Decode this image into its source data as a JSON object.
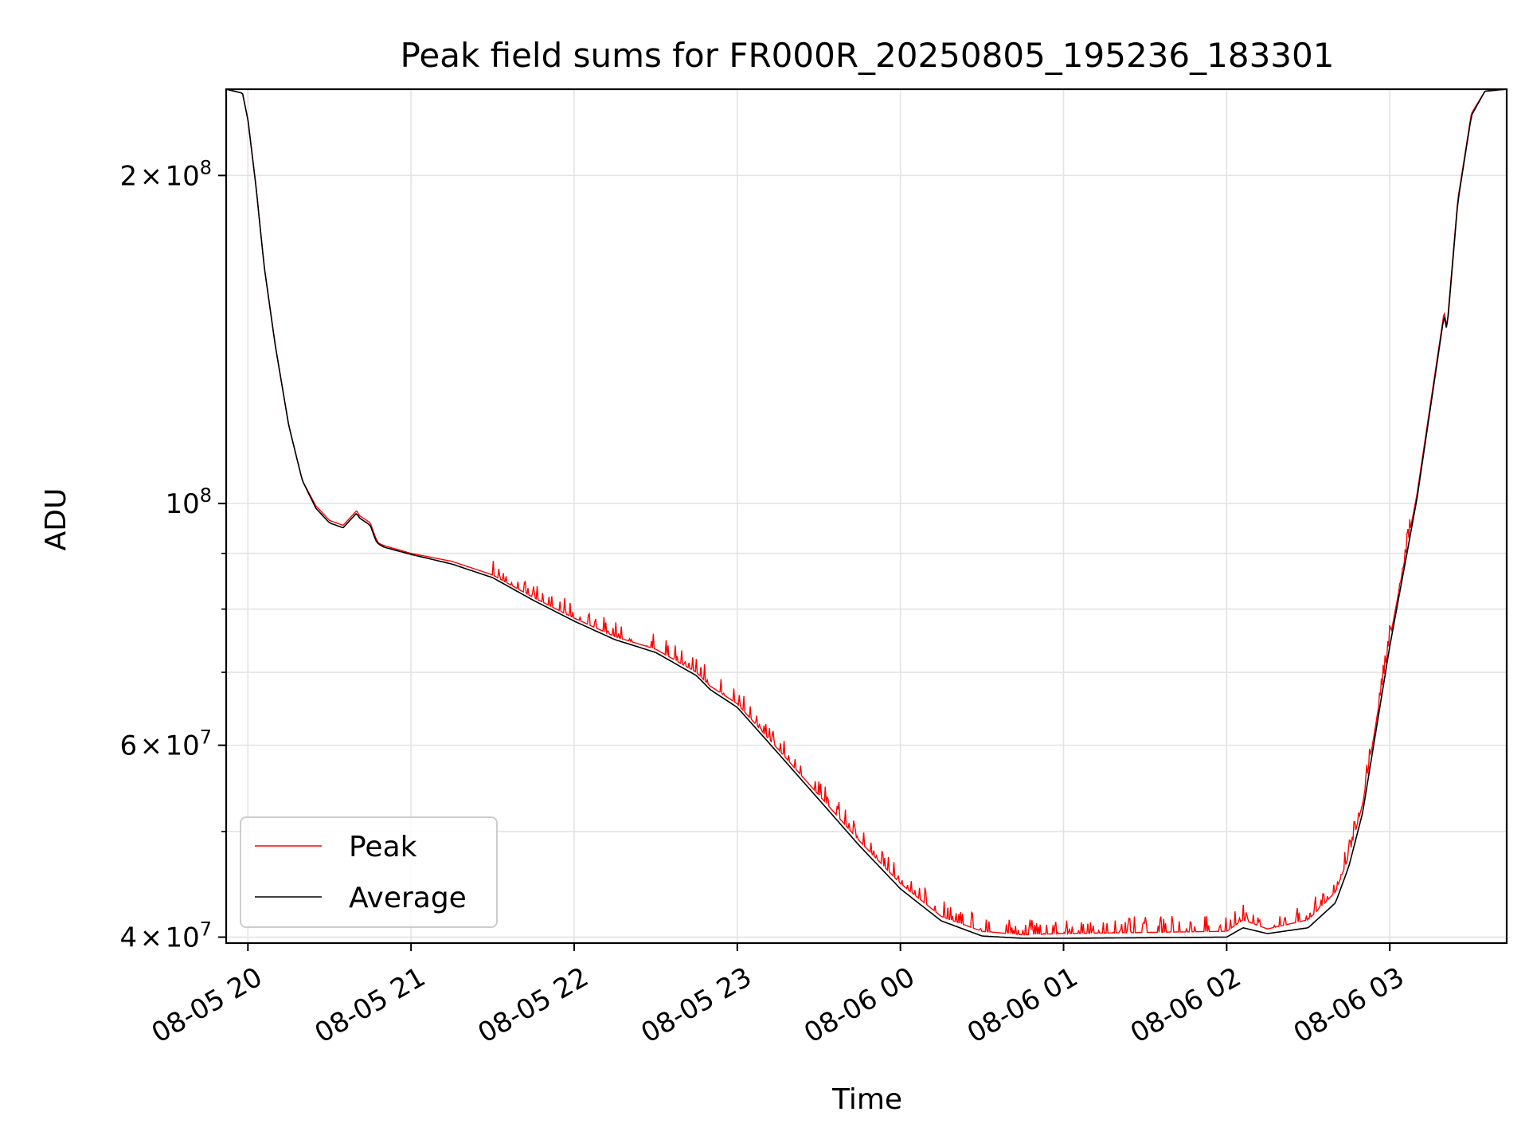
{
  "chart_data": {
    "type": "line",
    "title": "Peak field sums for FR000R_20250805_195236_183301",
    "xlabel": "Time",
    "ylabel": "ADU",
    "yscale": "log",
    "ylim": [
      39500000,
      240000000
    ],
    "xlim": [
      "2025-08-05 19:52",
      "2025-08-06 03:43"
    ],
    "grid": true,
    "legend_position": "lower-left",
    "x_ticks": [
      {
        "t": "2025-08-05 20:00",
        "label": "08-05 20"
      },
      {
        "t": "2025-08-05 21:00",
        "label": "08-05 21"
      },
      {
        "t": "2025-08-05 22:00",
        "label": "08-05 22"
      },
      {
        "t": "2025-08-05 23:00",
        "label": "08-05 23"
      },
      {
        "t": "2025-08-06 00:00",
        "label": "08-06 00"
      },
      {
        "t": "2025-08-06 01:00",
        "label": "08-06 01"
      },
      {
        "t": "2025-08-06 02:00",
        "label": "08-06 02"
      },
      {
        "t": "2025-08-06 03:00",
        "label": "08-06 03"
      }
    ],
    "y_ticks": [
      {
        "v": 40000000,
        "base": "4",
        "exp": "7"
      },
      {
        "v": 60000000,
        "base": "6",
        "exp": "7"
      },
      {
        "v": 100000000,
        "base": "",
        "exp": "8"
      },
      {
        "v": 200000000,
        "base": "2",
        "exp": "8"
      }
    ],
    "y_minor_ticks": [
      50000000,
      70000000,
      80000000,
      90000000,
      300000000
    ],
    "series": [
      {
        "name": "Peak",
        "color": "#ff0000",
        "noisy": true,
        "x": [
          "2025-08-05 19:52",
          "2025-08-05 19:58",
          "2025-08-05 20:00",
          "2025-08-05 20:03",
          "2025-08-05 20:06",
          "2025-08-05 20:10",
          "2025-08-05 20:15",
          "2025-08-05 20:20",
          "2025-08-05 20:25",
          "2025-08-05 20:30",
          "2025-08-05 20:35",
          "2025-08-05 20:40",
          "2025-08-05 20:41",
          "2025-08-05 20:45",
          "2025-08-05 20:47",
          "2025-08-05 20:48",
          "2025-08-05 20:50",
          "2025-08-05 21:00",
          "2025-08-05 21:15",
          "2025-08-05 21:30",
          "2025-08-05 21:45",
          "2025-08-05 22:00",
          "2025-08-05 22:15",
          "2025-08-05 22:30",
          "2025-08-05 22:45",
          "2025-08-05 22:50",
          "2025-08-05 23:00",
          "2025-08-05 23:15",
          "2025-08-05 23:30",
          "2025-08-05 23:45",
          "2025-08-06 00:00",
          "2025-08-06 00:15",
          "2025-08-06 00:30",
          "2025-08-06 00:45",
          "2025-08-06 01:00",
          "2025-08-06 01:30",
          "2025-08-06 02:00",
          "2025-08-06 02:06",
          "2025-08-06 02:15",
          "2025-08-06 02:30",
          "2025-08-06 02:40",
          "2025-08-06 02:45",
          "2025-08-06 02:50",
          "2025-08-06 03:00",
          "2025-08-06 03:10",
          "2025-08-06 03:20",
          "2025-08-06 03:21",
          "2025-08-06 03:25",
          "2025-08-06 03:30",
          "2025-08-06 03:35",
          "2025-08-06 03:43"
        ],
        "y": [
          240000000,
          238000000,
          225000000,
          195000000,
          165000000,
          140000000,
          118000000,
          105000000,
          99500000,
          96500000,
          95500000,
          98500000,
          97500000,
          96000000,
          93000000,
          92000000,
          91500000,
          90000000,
          88500000,
          86000000,
          82000000,
          78500000,
          75500000,
          73500000,
          70000000,
          68000000,
          65500000,
          59500000,
          54000000,
          49000000,
          44800000,
          41800000,
          40500000,
          40200000,
          40300000,
          40400000,
          40500000,
          41500000,
          40700000,
          41500000,
          44000000,
          47500000,
          53000000,
          75000000,
          102000000,
          150000000,
          145000000,
          190000000,
          228000000,
          239000000,
          240000000
        ]
      },
      {
        "name": "Average",
        "color": "#000000",
        "noisy": false,
        "x": [
          "2025-08-05 19:52",
          "2025-08-05 19:58",
          "2025-08-05 20:00",
          "2025-08-05 20:03",
          "2025-08-05 20:06",
          "2025-08-05 20:10",
          "2025-08-05 20:15",
          "2025-08-05 20:20",
          "2025-08-05 20:25",
          "2025-08-05 20:30",
          "2025-08-05 20:35",
          "2025-08-05 20:40",
          "2025-08-05 20:41",
          "2025-08-05 20:45",
          "2025-08-05 20:47",
          "2025-08-05 20:48",
          "2025-08-05 20:50",
          "2025-08-05 21:00",
          "2025-08-05 21:15",
          "2025-08-05 21:30",
          "2025-08-05 21:45",
          "2025-08-05 22:00",
          "2025-08-05 22:15",
          "2025-08-05 22:30",
          "2025-08-05 22:45",
          "2025-08-05 22:50",
          "2025-08-05 23:00",
          "2025-08-05 23:15",
          "2025-08-05 23:30",
          "2025-08-05 23:45",
          "2025-08-06 00:00",
          "2025-08-06 00:15",
          "2025-08-06 00:30",
          "2025-08-06 00:45",
          "2025-08-06 01:00",
          "2025-08-06 01:30",
          "2025-08-06 02:00",
          "2025-08-06 02:06",
          "2025-08-06 02:15",
          "2025-08-06 02:30",
          "2025-08-06 02:40",
          "2025-08-06 02:45",
          "2025-08-06 02:50",
          "2025-08-06 03:00",
          "2025-08-06 03:10",
          "2025-08-06 03:20",
          "2025-08-06 03:21",
          "2025-08-06 03:25",
          "2025-08-06 03:30",
          "2025-08-06 03:35",
          "2025-08-06 03:43"
        ],
        "y": [
          240000000,
          238000000,
          225000000,
          195000000,
          165000000,
          140000000,
          118000000,
          105000000,
          99000000,
          96000000,
          95000000,
          98000000,
          97000000,
          95500000,
          92500000,
          91800000,
          91200000,
          89800000,
          88000000,
          85500000,
          81500000,
          78000000,
          75000000,
          73000000,
          69500000,
          67500000,
          65000000,
          59000000,
          53500000,
          48500000,
          44300000,
          41400000,
          40100000,
          39900000,
          39900000,
          39950000,
          40000000,
          40800000,
          40300000,
          40800000,
          43000000,
          46500000,
          52000000,
          74000000,
          101000000,
          149000000,
          144000000,
          189000000,
          227000000,
          239000000,
          240000000
        ]
      }
    ]
  }
}
